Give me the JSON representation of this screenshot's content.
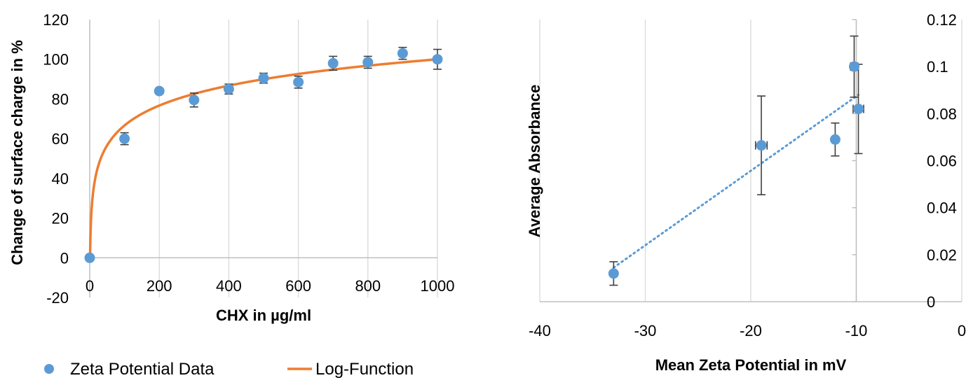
{
  "chart_data": [
    {
      "type": "scatter",
      "title": "",
      "xlabel": "CHX in µg/ml",
      "ylabel": "Change of surface charge in %",
      "xlim": [
        0,
        1000
      ],
      "ylim": [
        -20,
        120
      ],
      "x_ticks": [
        "0",
        "200",
        "400",
        "600",
        "800",
        "1000"
      ],
      "y_ticks": [
        "-20",
        "0",
        "20",
        "40",
        "60",
        "80",
        "100",
        "120"
      ],
      "grid": "vertical",
      "legend_position": "bottom",
      "series": [
        {
          "name": "Zeta Potential Data",
          "kind": "scatter",
          "color": "#5b9bd5",
          "x": [
            0,
            100,
            200,
            300,
            400,
            500,
            600,
            700,
            800,
            900,
            1000
          ],
          "y": [
            0,
            60,
            84,
            79.5,
            85,
            90.5,
            88.5,
            98,
            98.5,
            103,
            100
          ],
          "y_error": [
            0,
            3,
            0,
            3.5,
            2.5,
            2.5,
            3,
            3.5,
            3,
            3,
            5
          ]
        },
        {
          "name": "Log-Function",
          "kind": "line",
          "color": "#ed7d31",
          "function": "y = 100*ln(x)/ln(1000)",
          "x_start": 1,
          "x_end": 1000
        }
      ]
    },
    {
      "type": "scatter",
      "title": "",
      "xlabel": "Mean Zeta Potential in mV",
      "ylabel": "Average Absorbance",
      "xlim": [
        -40,
        0
      ],
      "ylim": [
        0,
        0.12
      ],
      "x_ticks": [
        "-40",
        "-30",
        "-20",
        "-10",
        "0"
      ],
      "y_ticks": [
        "0",
        "0.02",
        "0.04",
        "0.06",
        "0.08",
        "0.1",
        "0.12"
      ],
      "y_axis_side": "right",
      "grid": "vertical",
      "series": [
        {
          "kind": "scatter",
          "color": "#5b9bd5",
          "x": [
            -33,
            -19,
            -12,
            -10.2,
            -9.8
          ],
          "y": [
            0.012,
            0.0665,
            0.069,
            0.1,
            0.082
          ],
          "y_error": [
            0.005,
            0.021,
            0.007,
            0.013,
            0.019
          ],
          "x_error": [
            0,
            0.55,
            0,
            0.35,
            0.5
          ]
        },
        {
          "kind": "trendline",
          "style": "dotted",
          "color": "#5b9bd5",
          "x": [
            -33,
            -9.8
          ],
          "y": [
            0.0145,
            0.088
          ]
        }
      ]
    }
  ]
}
